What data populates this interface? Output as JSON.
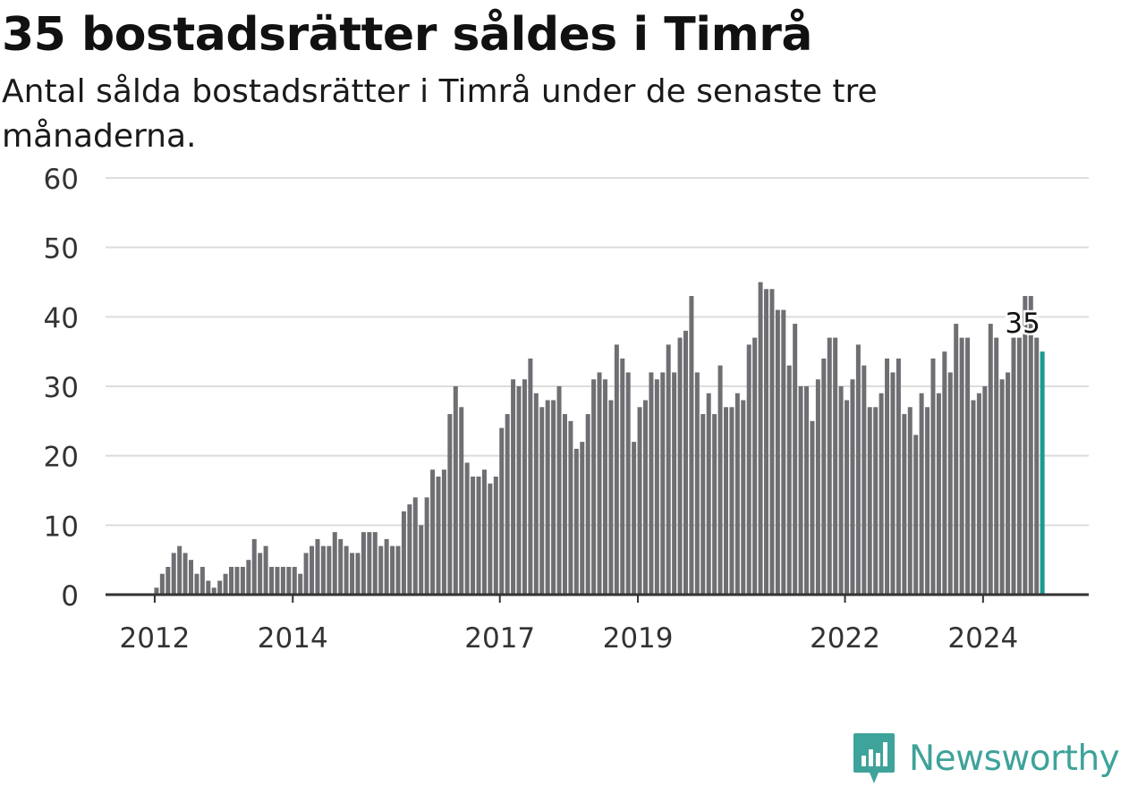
{
  "header": {
    "title": "35 bostadsrätter såldes i Timrå",
    "subtitle": "Antal sålda bostadsrätter i Timrå under de senaste tre månaderna."
  },
  "brand": {
    "name": "Newsworthy",
    "color": "#3ea39a"
  },
  "chart_data": {
    "type": "bar",
    "title": "35 bostadsrätter såldes i Timrå",
    "subtitle": "Antal sålda bostadsrätter i Timrå under de senaste tre månaderna.",
    "xlabel": "",
    "ylabel": "",
    "ylim": [
      0,
      60
    ],
    "y_ticks": [
      "0",
      "10",
      "20",
      "30",
      "40",
      "50",
      "60"
    ],
    "x_tick_labels": [
      {
        "label": "2012",
        "month_index": 1
      },
      {
        "label": "2014",
        "month_index": 25
      },
      {
        "label": "2017",
        "month_index": 61
      },
      {
        "label": "2019",
        "month_index": 85
      },
      {
        "label": "2022",
        "month_index": 121
      },
      {
        "label": "2024",
        "month_index": 145
      }
    ],
    "grid": true,
    "bar_color": "#6e6e73",
    "highlight_color": "#1a9a91",
    "highlight_label": "35",
    "values": [
      0,
      1,
      3,
      4,
      6,
      7,
      6,
      5,
      3,
      4,
      2,
      1,
      2,
      3,
      4,
      4,
      4,
      5,
      8,
      6,
      7,
      4,
      4,
      4,
      4,
      4,
      3,
      6,
      7,
      8,
      7,
      7,
      9,
      8,
      7,
      6,
      6,
      9,
      9,
      9,
      7,
      8,
      7,
      7,
      12,
      13,
      14,
      10,
      14,
      18,
      17,
      18,
      26,
      30,
      27,
      19,
      17,
      17,
      18,
      16,
      17,
      24,
      26,
      31,
      30,
      31,
      34,
      29,
      27,
      28,
      28,
      30,
      26,
      25,
      21,
      22,
      26,
      31,
      32,
      31,
      28,
      36,
      34,
      32,
      22,
      27,
      28,
      32,
      31,
      32,
      36,
      32,
      37,
      38,
      43,
      32,
      26,
      29,
      26,
      33,
      27,
      27,
      29,
      28,
      36,
      37,
      45,
      44,
      44,
      41,
      41,
      33,
      39,
      30,
      30,
      25,
      31,
      34,
      37,
      37,
      30,
      28,
      31,
      36,
      33,
      27,
      27,
      29,
      34,
      32,
      34,
      26,
      27,
      23,
      29,
      27,
      34,
      29,
      35,
      32,
      39,
      37,
      37,
      28,
      29,
      30,
      39,
      37,
      31,
      32,
      37,
      37,
      43,
      43,
      37,
      35
    ]
  }
}
